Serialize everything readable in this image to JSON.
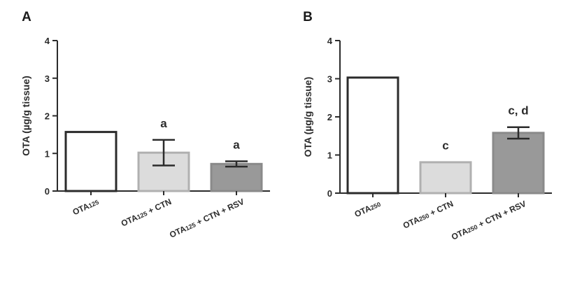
{
  "chart_data": [
    {
      "type": "bar",
      "panel_label": "A",
      "ylabel": "OTA (µg/g tissue)",
      "ylim": [
        0,
        4
      ],
      "yticks": [
        "0",
        "1",
        "2",
        "3",
        "4"
      ],
      "categories": [
        {
          "main": "OTA",
          "sub": "125",
          "rest": ""
        },
        {
          "main": "OTA",
          "sub": "125",
          "rest": " + CTN"
        },
        {
          "main": "OTA",
          "sub": "125",
          "rest": " + CTN + RSV"
        }
      ],
      "values": [
        1.57,
        1.02,
        0.72
      ],
      "errors": [
        0.0,
        0.34,
        0.07
      ],
      "annotations": [
        "",
        "a",
        "a"
      ],
      "colors": [
        "#ffffff",
        "#dcdcdc",
        "#999999"
      ],
      "edge_colors": [
        "#2b2b2b",
        "#b0b0b0",
        "#8a8a8a"
      ]
    },
    {
      "type": "bar",
      "panel_label": "B",
      "ylabel": "OTA (µg/g tissue)",
      "ylim": [
        0,
        4
      ],
      "yticks": [
        "0",
        "1",
        "2",
        "3",
        "4"
      ],
      "categories": [
        {
          "main": "OTA",
          "sub": "250",
          "rest": ""
        },
        {
          "main": "OTA",
          "sub": "250",
          "rest": " + CTN"
        },
        {
          "main": "OTA",
          "sub": "250",
          "rest": " + CTN + RSV"
        }
      ],
      "values": [
        3.03,
        0.81,
        1.58
      ],
      "errors": [
        0.02,
        0.01,
        0.15
      ],
      "annotations": [
        "",
        "c",
        "c, d"
      ],
      "colors": [
        "#ffffff",
        "#dcdcdc",
        "#999999"
      ],
      "edge_colors": [
        "#2b2b2b",
        "#b0b0b0",
        "#8a8a8a"
      ]
    }
  ]
}
